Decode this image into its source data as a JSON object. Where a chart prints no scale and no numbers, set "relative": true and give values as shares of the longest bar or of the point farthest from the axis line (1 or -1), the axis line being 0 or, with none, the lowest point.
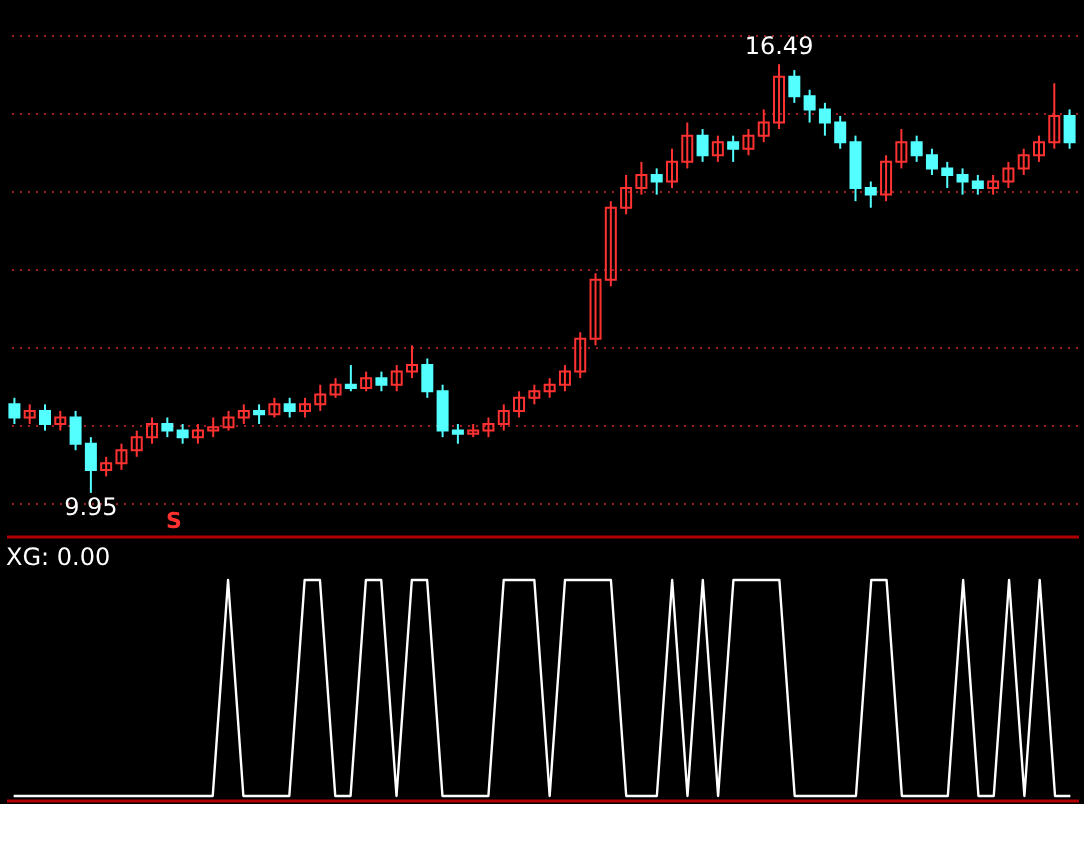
{
  "chart_data": [
    {
      "type": "candlestick",
      "categories": [
        null,
        null,
        null,
        null,
        null,
        null,
        null,
        null,
        null,
        null,
        null,
        null,
        null,
        null,
        null,
        null,
        null,
        null,
        null,
        null,
        null,
        null,
        null,
        null,
        null,
        null,
        null,
        null,
        null,
        null,
        null,
        null,
        null,
        null,
        null,
        null,
        null,
        null,
        null,
        null,
        null,
        null,
        null,
        null,
        null,
        null,
        null,
        null,
        null,
        null,
        null,
        null,
        null,
        null,
        null,
        null,
        null,
        null,
        null,
        null,
        null,
        null,
        null,
        null,
        null,
        null,
        null,
        null,
        null,
        null
      ],
      "ohlc": [
        [
          11.3,
          11.4,
          11.0,
          11.1
        ],
        [
          11.1,
          11.3,
          11.0,
          11.2
        ],
        [
          11.2,
          11.3,
          10.9,
          11.0
        ],
        [
          11.0,
          11.2,
          10.9,
          11.1
        ],
        [
          11.1,
          11.2,
          10.6,
          10.7
        ],
        [
          10.7,
          10.8,
          9.95,
          10.3
        ],
        [
          10.3,
          10.5,
          10.2,
          10.4
        ],
        [
          10.4,
          10.7,
          10.3,
          10.6
        ],
        [
          10.6,
          10.9,
          10.5,
          10.8
        ],
        [
          10.8,
          11.1,
          10.7,
          11.0
        ],
        [
          11.0,
          11.1,
          10.8,
          10.9
        ],
        [
          10.9,
          11.0,
          10.7,
          10.8
        ],
        [
          10.8,
          11.0,
          10.7,
          10.9
        ],
        [
          10.9,
          11.1,
          10.8,
          10.95
        ],
        [
          10.95,
          11.2,
          10.9,
          11.1
        ],
        [
          11.1,
          11.3,
          11.0,
          11.2
        ],
        [
          11.2,
          11.3,
          11.0,
          11.15
        ],
        [
          11.15,
          11.4,
          11.1,
          11.3
        ],
        [
          11.3,
          11.4,
          11.1,
          11.2
        ],
        [
          11.2,
          11.4,
          11.1,
          11.3
        ],
        [
          11.3,
          11.6,
          11.2,
          11.45
        ],
        [
          11.45,
          11.7,
          11.4,
          11.6
        ],
        [
          11.6,
          11.9,
          11.5,
          11.55
        ],
        [
          11.55,
          11.8,
          11.5,
          11.7
        ],
        [
          11.7,
          11.8,
          11.5,
          11.6
        ],
        [
          11.6,
          11.9,
          11.5,
          11.8
        ],
        [
          11.8,
          12.2,
          11.7,
          11.9
        ],
        [
          11.9,
          12.0,
          11.4,
          11.5
        ],
        [
          11.5,
          11.6,
          10.8,
          10.9
        ],
        [
          10.9,
          11.0,
          10.7,
          10.85
        ],
        [
          10.85,
          11.0,
          10.8,
          10.9
        ],
        [
          10.9,
          11.1,
          10.8,
          11.0
        ],
        [
          11.0,
          11.3,
          10.9,
          11.2
        ],
        [
          11.2,
          11.5,
          11.1,
          11.4
        ],
        [
          11.4,
          11.6,
          11.3,
          11.5
        ],
        [
          11.5,
          11.7,
          11.4,
          11.6
        ],
        [
          11.6,
          11.9,
          11.5,
          11.8
        ],
        [
          11.8,
          12.4,
          11.7,
          12.3
        ],
        [
          12.3,
          13.3,
          12.2,
          13.2
        ],
        [
          13.2,
          14.4,
          13.1,
          14.3
        ],
        [
          14.3,
          14.8,
          14.2,
          14.6
        ],
        [
          14.6,
          15.0,
          14.5,
          14.8
        ],
        [
          14.8,
          14.9,
          14.5,
          14.7
        ],
        [
          14.7,
          15.2,
          14.6,
          15.0
        ],
        [
          15.0,
          15.6,
          14.9,
          15.4
        ],
        [
          15.4,
          15.5,
          15.0,
          15.1
        ],
        [
          15.1,
          15.4,
          15.0,
          15.3
        ],
        [
          15.3,
          15.4,
          15.0,
          15.2
        ],
        [
          15.2,
          15.5,
          15.1,
          15.4
        ],
        [
          15.4,
          15.8,
          15.3,
          15.6
        ],
        [
          15.6,
          16.49,
          15.5,
          16.3
        ],
        [
          16.3,
          16.4,
          15.9,
          16.0
        ],
        [
          16.0,
          16.1,
          15.6,
          15.8
        ],
        [
          15.8,
          15.9,
          15.4,
          15.6
        ],
        [
          15.6,
          15.7,
          15.2,
          15.3
        ],
        [
          15.3,
          15.4,
          14.4,
          14.6
        ],
        [
          14.6,
          14.7,
          14.3,
          14.5
        ],
        [
          14.5,
          15.1,
          14.4,
          15.0
        ],
        [
          15.0,
          15.5,
          14.9,
          15.3
        ],
        [
          15.3,
          15.4,
          15.0,
          15.1
        ],
        [
          15.1,
          15.2,
          14.8,
          14.9
        ],
        [
          14.9,
          15.0,
          14.6,
          14.8
        ],
        [
          14.8,
          14.9,
          14.5,
          14.7
        ],
        [
          14.7,
          14.8,
          14.5,
          14.6
        ],
        [
          14.6,
          14.8,
          14.5,
          14.7
        ],
        [
          14.7,
          15.0,
          14.6,
          14.9
        ],
        [
          14.9,
          15.2,
          14.8,
          15.1
        ],
        [
          15.1,
          15.4,
          15.0,
          15.3
        ],
        [
          15.3,
          16.2,
          15.2,
          15.7
        ],
        [
          15.7,
          15.8,
          15.2,
          15.3
        ]
      ],
      "colors": [
        "#54ffff",
        "#ff3232",
        "#54ffff",
        "#ff3232",
        "#54ffff",
        "#54ffff",
        "#ff3232",
        "#ff3232",
        "#ff3232",
        "#ff3232",
        "#54ffff",
        "#54ffff",
        "#ff3232",
        "#ff3232",
        "#ff3232",
        "#ff3232",
        "#54ffff",
        "#ff3232",
        "#54ffff",
        "#ff3232",
        "#ff3232",
        "#ff3232",
        "#54ffff",
        "#ff3232",
        "#54ffff",
        "#ff3232",
        "#ff3232",
        "#54ffff",
        "#54ffff",
        "#54ffff",
        "#ff3232",
        "#ff3232",
        "#ff3232",
        "#ff3232",
        "#ff3232",
        "#ff3232",
        "#ff3232",
        "#ff3232",
        "#ff3232",
        "#ff3232",
        "#ff3232",
        "#ff3232",
        "#54ffff",
        "#ff3232",
        "#ff3232",
        "#54ffff",
        "#ff3232",
        "#54ffff",
        "#ff3232",
        "#ff3232",
        "#ff3232",
        "#54ffff",
        "#54ffff",
        "#54ffff",
        "#54ffff",
        "#54ffff",
        "#54ffff",
        "#ff3232",
        "#ff3232",
        "#54ffff",
        "#54ffff",
        "#54ffff",
        "#54ffff",
        "#54ffff",
        "#ff3232",
        "#ff3232",
        "#ff3232",
        "#ff3232",
        "#ff3232",
        "#54ffff"
      ],
      "ref_lines": [
        {
          "axis": "y",
          "value": 9.78,
          "color": "#a02020",
          "line_style": "dotted"
        },
        {
          "axis": "y",
          "value": 10.97,
          "color": "#a02020",
          "line_style": "dotted"
        },
        {
          "axis": "y",
          "value": 12.16,
          "color": "#a02020",
          "line_style": "dotted"
        },
        {
          "axis": "y",
          "value": 13.35,
          "color": "#a02020",
          "line_style": "dotted"
        },
        {
          "axis": "y",
          "value": 14.54,
          "color": "#a02020",
          "line_style": "dotted"
        },
        {
          "axis": "y",
          "value": 15.73,
          "color": "#a02020",
          "line_style": "dotted"
        },
        {
          "axis": "y",
          "value": 16.92,
          "color": "#a02020",
          "line_style": "dotted"
        }
      ],
      "tick_labels": false,
      "annotations": [
        {
          "text": "16.49",
          "y": 16.49
        },
        {
          "text": "9.95",
          "y": 9.95
        },
        "S"
      ]
    },
    {
      "type": "line",
      "title": "XG: 0.00",
      "relative": true,
      "tick_labels": false,
      "categories": [
        null,
        null,
        null,
        null,
        null,
        null,
        null,
        null,
        null,
        null,
        null,
        null,
        null,
        null,
        null,
        null,
        null,
        null,
        null,
        null,
        null,
        null,
        null,
        null,
        null,
        null,
        null,
        null,
        null,
        null,
        null,
        null,
        null,
        null,
        null,
        null,
        null,
        null,
        null,
        null,
        null,
        null,
        null,
        null,
        null,
        null,
        null,
        null,
        null,
        null,
        null,
        null,
        null,
        null,
        null,
        null,
        null,
        null,
        null,
        null,
        null,
        null,
        null,
        null,
        null,
        null,
        null,
        null,
        null,
        null
      ],
      "series": [
        {
          "color": "#ffffff",
          "values": [
            0,
            0,
            0,
            0,
            0,
            0,
            0,
            0,
            0,
            0,
            0,
            0,
            0,
            0,
            1,
            0,
            0,
            0,
            0,
            1,
            1,
            0,
            0,
            1,
            1,
            0,
            1,
            1,
            0,
            0,
            0,
            0,
            1,
            1,
            1,
            0,
            1,
            1,
            1,
            1,
            0,
            0,
            0,
            1,
            0,
            1,
            0,
            1,
            1,
            1,
            1,
            0,
            0,
            0,
            0,
            0,
            1,
            1,
            0,
            0,
            0,
            0,
            1,
            0,
            0,
            1,
            0,
            1,
            0,
            0
          ]
        }
      ]
    }
  ]
}
